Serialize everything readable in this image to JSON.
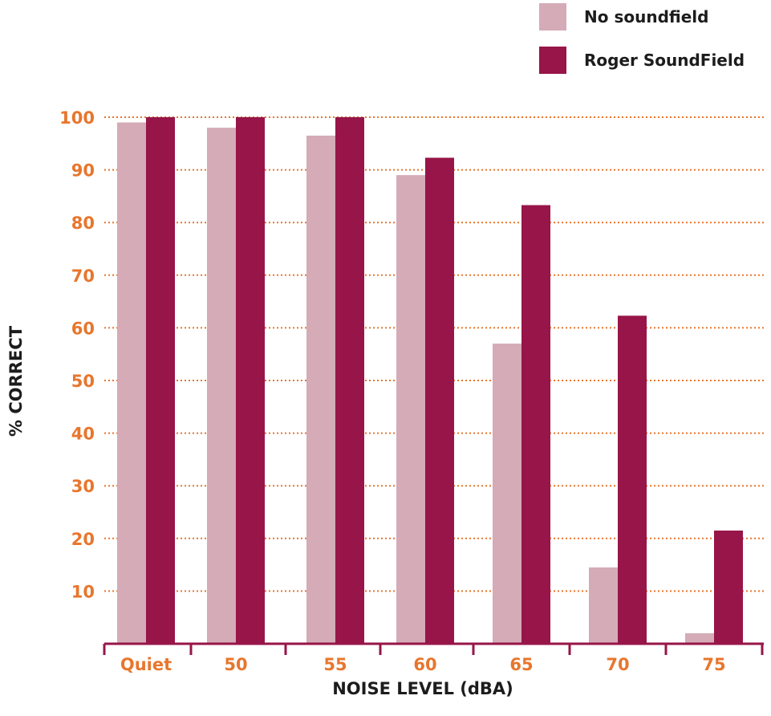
{
  "colors": {
    "no_soundfield": "#d4abb7",
    "roger_soundfield": "#971548",
    "tick_text": "#e8762d",
    "grid": "#e8762d",
    "axis": "#971548",
    "label_text": "#1c1c1c"
  },
  "chart_data": {
    "type": "bar",
    "title": "",
    "xlabel": "NOISE LEVEL (dBA)",
    "ylabel": "% CORRECT",
    "categories": [
      "Quiet",
      "50",
      "55",
      "60",
      "65",
      "70",
      "75"
    ],
    "series": [
      {
        "name": "No soundfield",
        "values": [
          99,
          98,
          96.5,
          89,
          57,
          14.5,
          2
        ]
      },
      {
        "name": "Roger SoundField",
        "values": [
          100,
          100,
          100,
          92.3,
          83.3,
          62.3,
          21.5
        ]
      }
    ],
    "ylim": [
      0,
      100
    ],
    "yticks": [
      10,
      20,
      30,
      40,
      50,
      60,
      70,
      80,
      90,
      100
    ],
    "grid": true,
    "legend_position": "top-right"
  }
}
